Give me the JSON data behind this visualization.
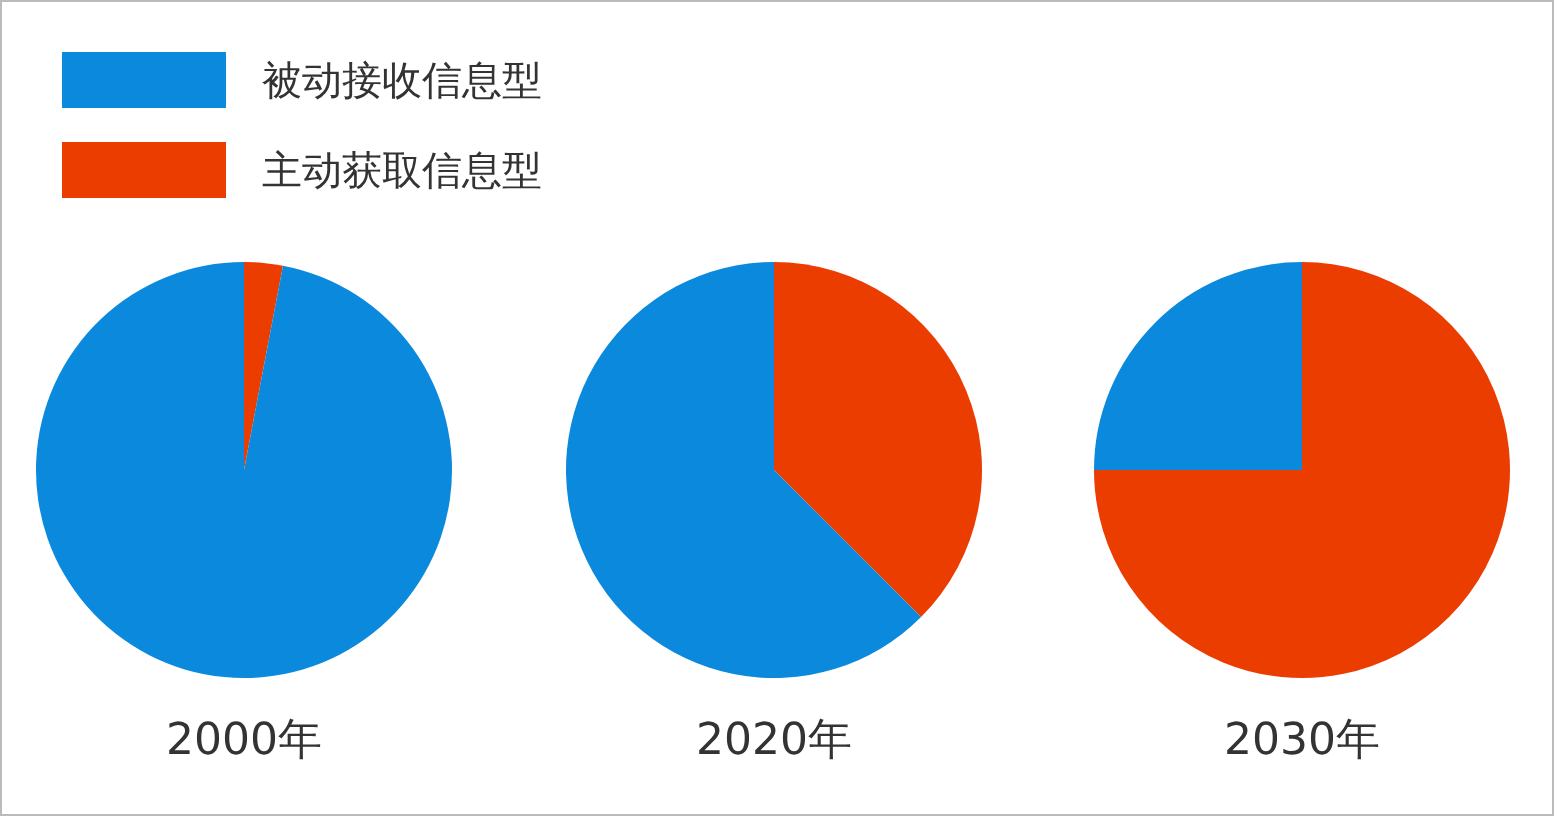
{
  "chart_data": {
    "type": "pie",
    "categories": [
      "被动接收信息型",
      "主动获取信息型"
    ],
    "colors": [
      "#0a89dd",
      "#ec3d00"
    ],
    "legend": "top left",
    "series": [
      {
        "name": "2000年",
        "values": [
          97,
          3
        ]
      },
      {
        "name": "2020年",
        "values": [
          62.5,
          37.5
        ]
      },
      {
        "name": "2030年",
        "values": [
          25,
          75
        ]
      }
    ]
  }
}
